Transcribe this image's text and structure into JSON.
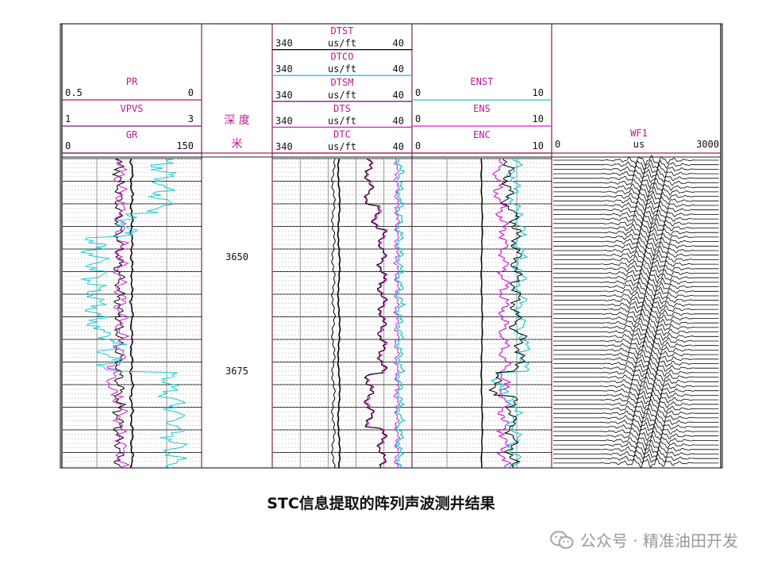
{
  "chart_data": {
    "type": "well-log",
    "depth_label": "深 度",
    "depth_unit": "米",
    "depth_ticks": [
      "3650",
      "3675"
    ],
    "tracks": [
      {
        "name": "track-1",
        "curves": [
          {
            "name": "PR",
            "min": "0.5",
            "max": "0",
            "color": "#d11fd1"
          },
          {
            "name": "VPVS",
            "min": "1",
            "max": "3",
            "color": "#d11fd1"
          },
          {
            "name": "GR",
            "min": "0",
            "max": "150",
            "color": "#000000"
          }
        ]
      },
      {
        "name": "track-2",
        "curves": [
          {
            "name": "DTST",
            "min": "340",
            "unit": "us/ft",
            "max": "40",
            "color": "#000000"
          },
          {
            "name": "DTCO",
            "min": "340",
            "unit": "us/ft",
            "max": "40",
            "color": "#000000"
          },
          {
            "name": "DTSM",
            "min": "340",
            "unit": "us/ft",
            "max": "40",
            "color": "#d11fd1"
          },
          {
            "name": "DTS",
            "min": "340",
            "unit": "us/ft",
            "max": "40",
            "color": "#d11fd1"
          },
          {
            "name": "DTC",
            "min": "340",
            "unit": "us/ft",
            "max": "40",
            "color": "#d11fd1"
          }
        ]
      },
      {
        "name": "track-3",
        "curves": [
          {
            "name": "ENST",
            "min": "0",
            "max": "10",
            "color": "#1ec8d2"
          },
          {
            "name": "ENS",
            "min": "0",
            "max": "10",
            "color": "#d11fd1"
          },
          {
            "name": "ENC",
            "min": "0",
            "max": "10",
            "color": "#d11fd1"
          }
        ]
      },
      {
        "name": "track-4",
        "curves": [
          {
            "name": "WF1",
            "min": "0",
            "unit": "us",
            "max": "3000",
            "color": "#000000"
          }
        ]
      }
    ]
  },
  "caption": "STC信息提取的阵列声波测井结果",
  "watermark": "公众号 · 精准油田开发"
}
